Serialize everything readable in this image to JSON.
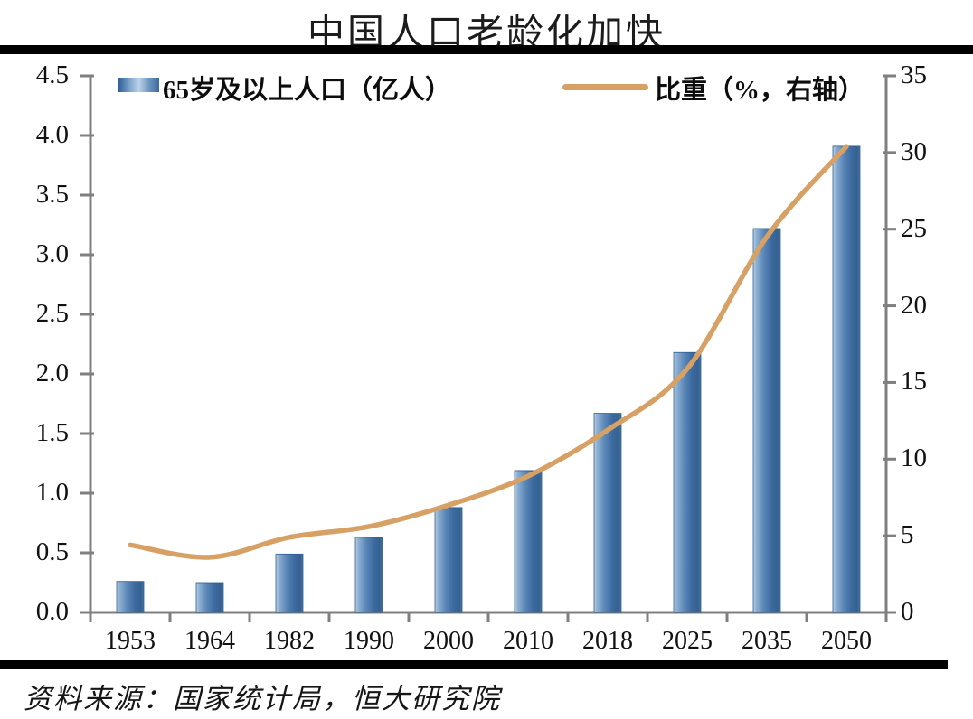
{
  "title": "中国人口老龄化加快",
  "source": "资料来源：国家统计局，恒大研究院",
  "legend": {
    "bars": "65岁及以上人口（亿人）",
    "line": "比重（%，右轴）"
  },
  "colors": {
    "line": "#d7a065",
    "axis": "#7f7f7f",
    "bar_dark": "#35618f",
    "bar_mid": "#3e6da3",
    "bar_light": "#bdd2e6",
    "bar_outline": "#2d5c92",
    "rule": "#000000"
  },
  "chart_data": {
    "type": "bar",
    "title": "中国人口老龄化加快",
    "categories": [
      "1953",
      "1964",
      "1982",
      "1990",
      "2000",
      "2010",
      "2018",
      "2025",
      "2035",
      "2050"
    ],
    "series": [
      {
        "name": "65岁及以上人口（亿人）",
        "type": "bar",
        "axis": "left",
        "values": [
          0.26,
          0.25,
          0.49,
          0.63,
          0.88,
          1.19,
          1.67,
          2.18,
          3.22,
          3.91
        ]
      },
      {
        "name": "比重（%，右轴）",
        "type": "line",
        "axis": "right",
        "values": [
          4.4,
          3.6,
          4.9,
          5.6,
          7.0,
          8.9,
          11.9,
          15.9,
          24.5,
          30.4
        ]
      }
    ],
    "left_axis": {
      "min": 0,
      "max": 4.5,
      "tick_labels": [
        "0.0",
        "0.5",
        "1.0",
        "1.5",
        "2.0",
        "2.5",
        "3.0",
        "3.5",
        "4.0",
        "4.5"
      ]
    },
    "right_axis": {
      "min": 0,
      "max": 35,
      "tick_labels": [
        "0",
        "5",
        "10",
        "15",
        "20",
        "25",
        "30",
        "35"
      ]
    },
    "legend_position": "top",
    "grid": false
  }
}
